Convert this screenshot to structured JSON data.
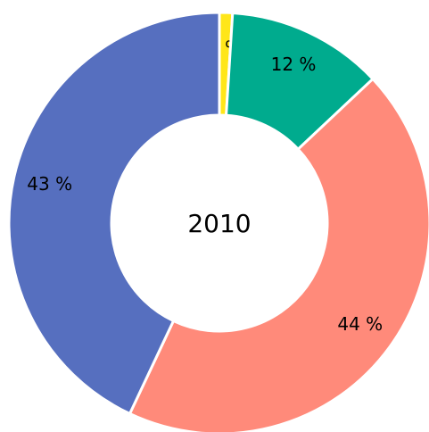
{
  "chart_data": {
    "type": "donut",
    "title": "2010",
    "categories": [
      null,
      null,
      null,
      null
    ],
    "series": [
      {
        "name": null,
        "values": [
          1,
          12,
          44,
          43
        ],
        "value_labels": [
          "1 %",
          "12 %",
          "44 %",
          "43 %"
        ],
        "colors": [
          "#ffe619",
          "#00ab8e",
          "#ff8a7a",
          "#566fbf"
        ]
      }
    ]
  }
}
